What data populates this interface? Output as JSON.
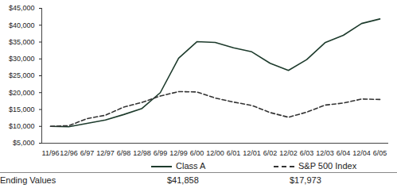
{
  "chart_data": {
    "type": "line",
    "categories": [
      "11/96",
      "12/96",
      "6/97",
      "12/97",
      "6/98",
      "12/98",
      "6/99",
      "12/99",
      "6/00",
      "12/00",
      "6/01",
      "12/01",
      "6/02",
      "12/02",
      "6/03",
      "12/03",
      "6/04",
      "12/04",
      "6/05"
    ],
    "series": [
      {
        "name": "Class A",
        "color": "#1d3b2c",
        "line_style": "solid",
        "values": [
          10000,
          9900,
          10900,
          11900,
          13500,
          15300,
          20000,
          30200,
          35100,
          34900,
          33300,
          32100,
          28700,
          26600,
          29800,
          34800,
          37000,
          40500,
          41858
        ],
        "ending_value": 41858,
        "ending_value_label": "$41,858"
      },
      {
        "name": "S&P 500 Index",
        "color": "#333333",
        "line_style": "dashed",
        "values": [
          10000,
          10200,
          12300,
          13300,
          15700,
          17100,
          19000,
          20300,
          20200,
          18400,
          17200,
          16200,
          14100,
          12700,
          14200,
          16300,
          16900,
          18100,
          17973
        ],
        "ending_value": 17973,
        "ending_value_label": "$17,973"
      }
    ],
    "ending_values_label": "Ending Values",
    "ylim": [
      5000,
      45000
    ],
    "yticks": [
      {
        "value": 5000,
        "label": "$5,000"
      },
      {
        "value": 10000,
        "label": "$10,000"
      },
      {
        "value": 15000,
        "label": "$15,000"
      },
      {
        "value": 20000,
        "label": "$20,000"
      },
      {
        "value": 25000,
        "label": "$25,000"
      },
      {
        "value": 30000,
        "label": "$30,000"
      },
      {
        "value": 35000,
        "label": "$35,000"
      },
      {
        "value": 40000,
        "label": "$40,000"
      },
      {
        "value": 45000,
        "label": "$45,000"
      }
    ],
    "grid": false,
    "legend": "bottom"
  }
}
